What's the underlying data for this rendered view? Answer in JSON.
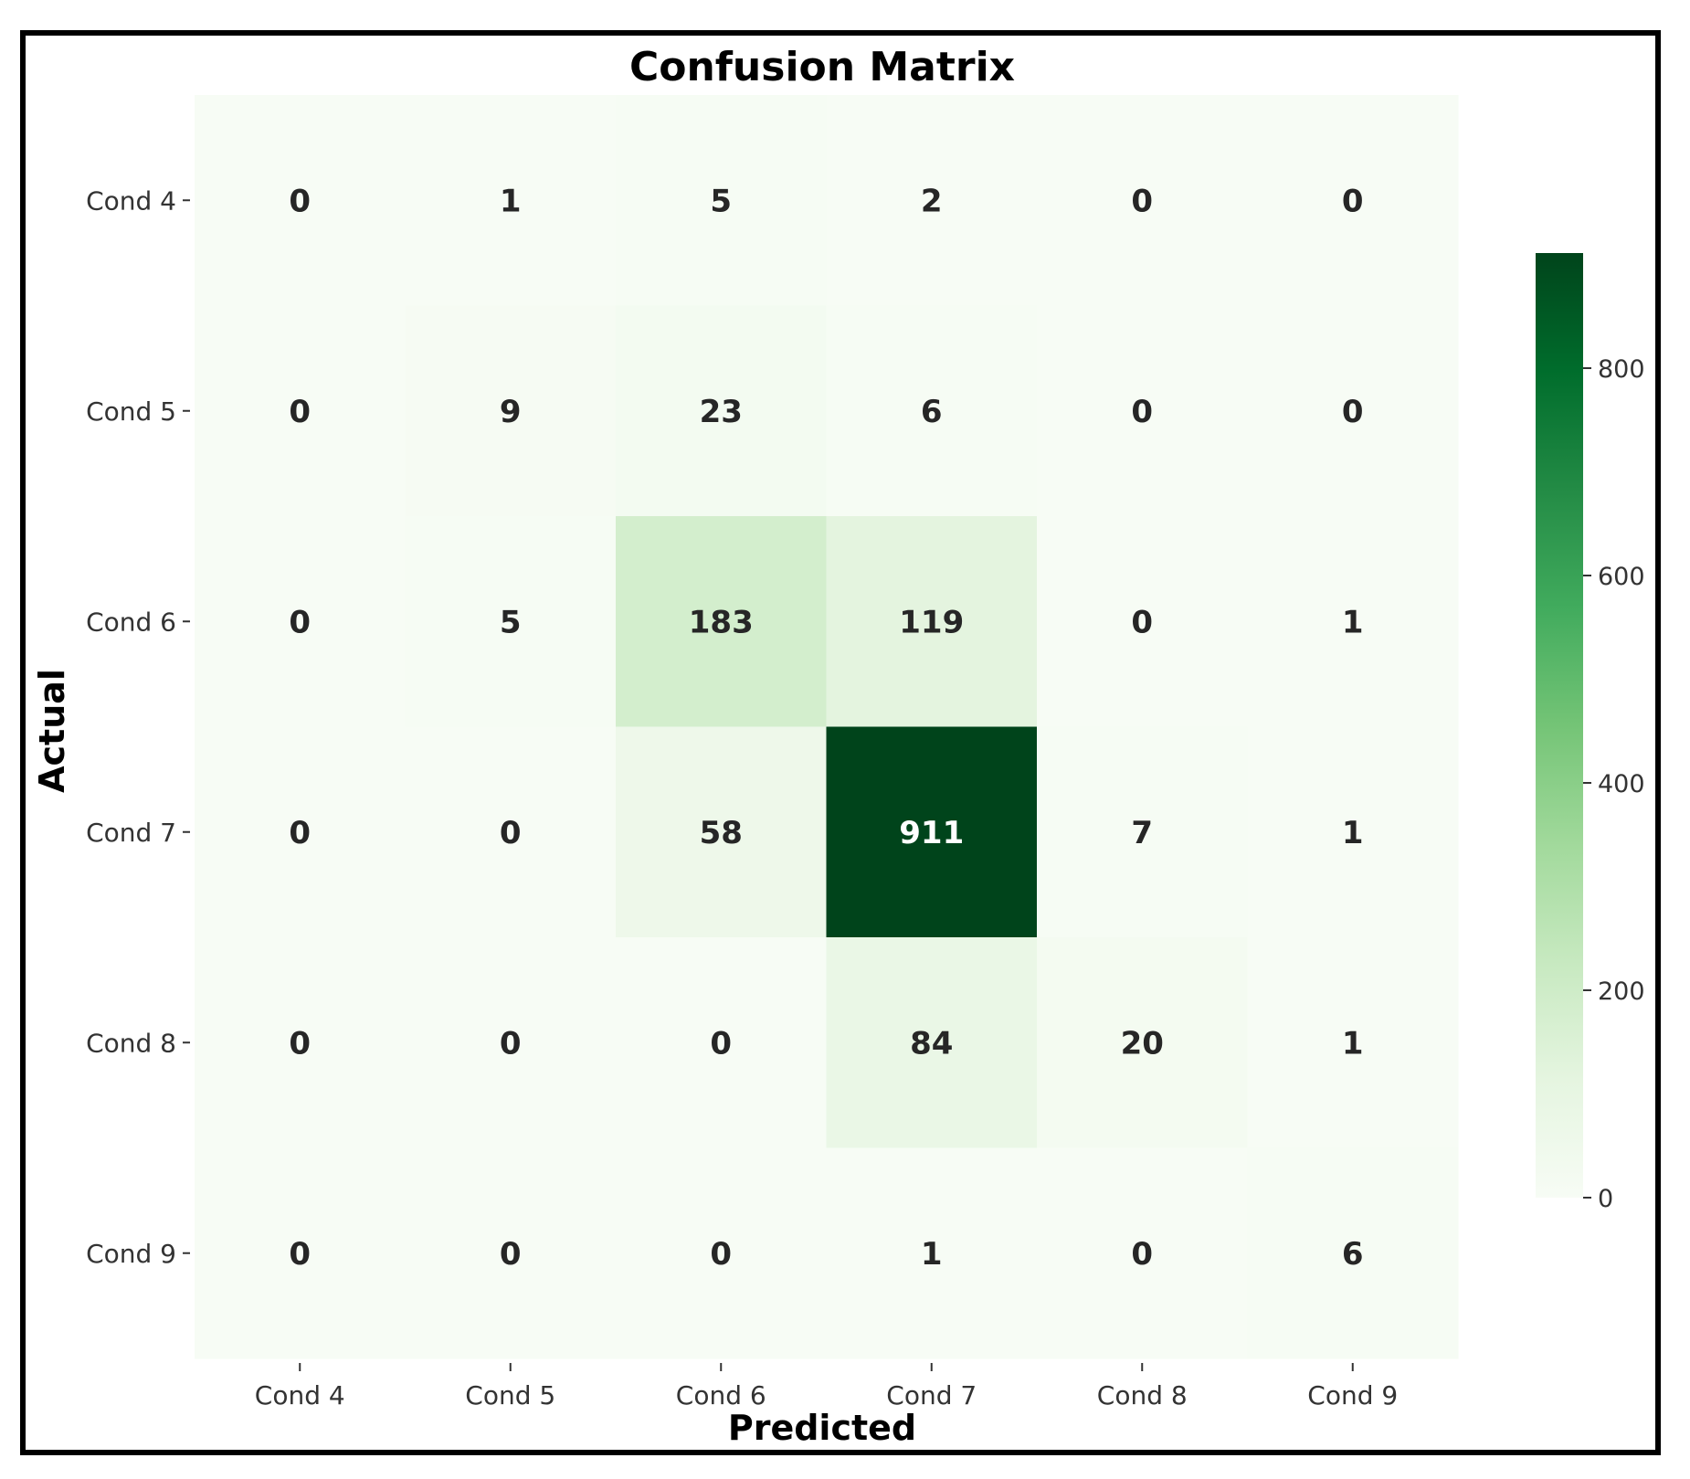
{
  "chart_data": {
    "type": "heatmap",
    "title": "Confusion Matrix",
    "xlabel": "Predicted",
    "ylabel": "Actual",
    "x_categories": [
      "Cond 4",
      "Cond 5",
      "Cond 6",
      "Cond 7",
      "Cond 8",
      "Cond 9"
    ],
    "y_categories": [
      "Cond 4",
      "Cond 5",
      "Cond 6",
      "Cond 7",
      "Cond 8",
      "Cond 9"
    ],
    "values": [
      [
        0,
        1,
        5,
        2,
        0,
        0
      ],
      [
        0,
        9,
        23,
        6,
        0,
        0
      ],
      [
        0,
        5,
        183,
        119,
        0,
        1
      ],
      [
        0,
        0,
        58,
        911,
        7,
        1
      ],
      [
        0,
        0,
        0,
        84,
        20,
        1
      ],
      [
        0,
        0,
        0,
        1,
        0,
        6
      ]
    ],
    "colormap": "Greens",
    "colorbar": {
      "range": [
        0,
        911
      ],
      "ticks": [
        0,
        200,
        400,
        600,
        800
      ]
    },
    "colors": {
      "low": "#f7fcf5",
      "high": "#00441b"
    }
  }
}
